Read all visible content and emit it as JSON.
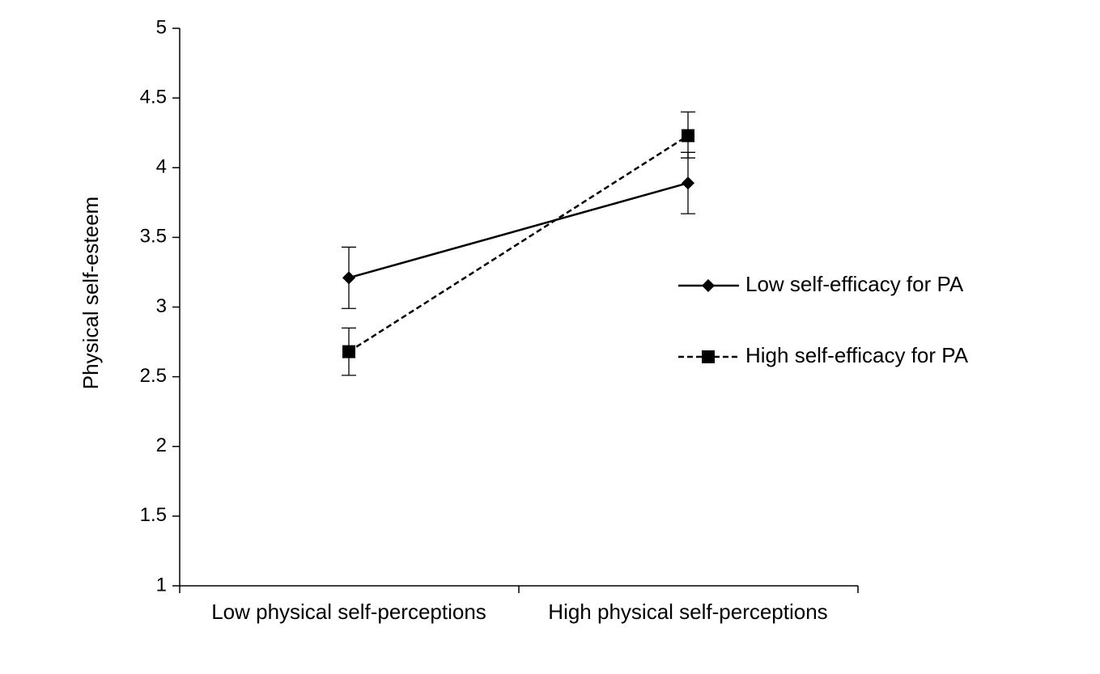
{
  "chart_data": {
    "type": "line",
    "title": "",
    "xlabel": "",
    "ylabel": "Physical self-esteem",
    "categories": [
      "Low physical self-perceptions",
      "High physical self-perceptions"
    ],
    "ylim": [
      1,
      5
    ],
    "yticks": [
      "1",
      "1.5",
      "2",
      "2.5",
      "3",
      "3.5",
      "4",
      "4.5",
      "5"
    ],
    "grid": false,
    "legend_position": "right",
    "series": [
      {
        "name": "Low self-efficacy for PA",
        "values": [
          3.21,
          3.89
        ],
        "error_low": [
          2.99,
          3.67
        ],
        "error_high": [
          3.43,
          4.11
        ],
        "line_style": "solid",
        "marker": "diamond",
        "color": "#000000"
      },
      {
        "name": "High self-efficacy for PA",
        "values": [
          2.68,
          4.23
        ],
        "error_low": [
          2.51,
          4.07
        ],
        "error_high": [
          2.85,
          4.4
        ],
        "line_style": "dashed",
        "marker": "square",
        "color": "#000000"
      }
    ]
  }
}
